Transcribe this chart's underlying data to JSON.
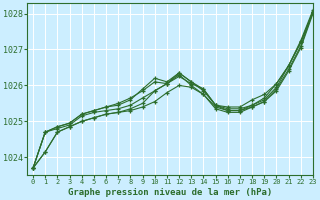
{
  "bg_color": "#cceeff",
  "grid_color": "#aaddcc",
  "line_color": "#2d6e2d",
  "title": "Graphe pression niveau de la mer (hPa)",
  "xlim": [
    -0.5,
    23
  ],
  "ylim": [
    1023.5,
    1028.3
  ],
  "yticks": [
    1024,
    1025,
    1026,
    1027,
    1028
  ],
  "xticks": [
    0,
    1,
    2,
    3,
    4,
    5,
    6,
    7,
    8,
    9,
    10,
    11,
    12,
    13,
    14,
    15,
    16,
    17,
    18,
    19,
    20,
    21,
    22,
    23
  ],
  "series": [
    [
      1023.7,
      1024.15,
      1024.7,
      1024.85,
      1025.0,
      1025.1,
      1025.2,
      1025.25,
      1025.3,
      1025.4,
      1025.55,
      1025.8,
      1026.0,
      1025.95,
      1025.75,
      1025.4,
      1025.3,
      1025.3,
      1025.4,
      1025.55,
      1025.9,
      1026.45,
      1027.1,
      1028.05
    ],
    [
      1023.7,
      1024.7,
      1024.8,
      1024.9,
      1025.15,
      1025.25,
      1025.3,
      1025.35,
      1025.45,
      1025.65,
      1025.85,
      1026.05,
      1026.25,
      1026.05,
      1025.9,
      1025.45,
      1025.3,
      1025.3,
      1025.45,
      1025.65,
      1026.05,
      1026.55,
      1027.2,
      1028.05
    ],
    [
      1023.7,
      1024.7,
      1024.85,
      1024.95,
      1025.2,
      1025.3,
      1025.4,
      1025.45,
      1025.6,
      1025.9,
      1026.2,
      1026.1,
      1026.35,
      1026.1,
      1025.9,
      1025.45,
      1025.4,
      1025.4,
      1025.6,
      1025.75,
      1026.05,
      1026.55,
      1027.2,
      1028.05
    ],
    [
      1023.7,
      1024.7,
      1024.85,
      1024.95,
      1025.2,
      1025.3,
      1025.4,
      1025.5,
      1025.65,
      1025.85,
      1026.1,
      1026.05,
      1026.3,
      1026.0,
      1025.75,
      1025.35,
      1025.25,
      1025.25,
      1025.4,
      1025.55,
      1025.85,
      1026.4,
      1027.05,
      1028.0
    ]
  ],
  "series_diverge": [
    1023.7,
    1024.15,
    1024.7,
    1024.85,
    1025.0,
    1025.1,
    1025.2,
    1025.25,
    1025.35,
    1025.5,
    1025.85,
    1026.05,
    1026.35,
    1026.1,
    1025.85,
    1025.45,
    1025.35,
    1025.35,
    1025.45,
    1025.6,
    1025.95,
    1026.55,
    1027.25,
    1028.1
  ]
}
